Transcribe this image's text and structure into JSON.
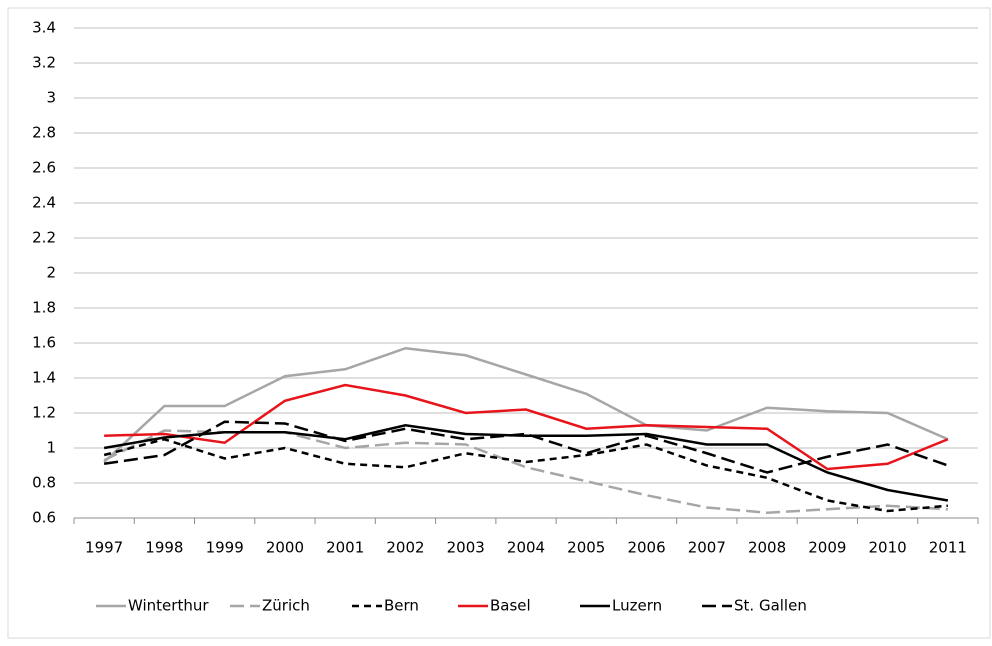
{
  "chart_data": {
    "type": "line",
    "x": [
      "1997",
      "1998",
      "1999",
      "2000",
      "2001",
      "2002",
      "2003",
      "2004",
      "2005",
      "2006",
      "2007",
      "2008",
      "2009",
      "2010",
      "2011"
    ],
    "ylim": [
      0.6,
      3.4
    ],
    "yticks": [
      0.6,
      0.8,
      1,
      1.2,
      1.4,
      1.6,
      1.8,
      2,
      2.2,
      2.4,
      2.6,
      2.8,
      3,
      3.2,
      3.4
    ],
    "grid": true,
    "legend": "bottom",
    "series": [
      {
        "name": "Winterthur",
        "color": "#a6a6a6",
        "line_style": "solid",
        "values": [
          0.92,
          1.24,
          1.24,
          1.41,
          1.45,
          1.57,
          1.53,
          1.42,
          1.31,
          1.13,
          1.1,
          1.23,
          1.21,
          1.2,
          1.05
        ]
      },
      {
        "name": "Zürich",
        "color": "#a6a6a6",
        "line_style": "long-dash",
        "values": [
          0.93,
          1.1,
          1.09,
          1.09,
          1.0,
          1.03,
          1.02,
          0.89,
          0.81,
          0.73,
          0.66,
          0.63,
          0.65,
          0.67,
          0.65
        ]
      },
      {
        "name": "Bern",
        "color": "#000000",
        "line_style": "dash",
        "values": [
          0.96,
          1.05,
          0.94,
          1.0,
          0.91,
          0.89,
          0.97,
          0.92,
          0.96,
          1.02,
          0.9,
          0.83,
          0.7,
          0.64,
          0.67
        ]
      },
      {
        "name": "Basel",
        "color": "#e8141b",
        "line_style": "solid",
        "values": [
          1.07,
          1.08,
          1.03,
          1.27,
          1.36,
          1.3,
          1.2,
          1.22,
          1.11,
          1.13,
          1.12,
          1.11,
          0.88,
          0.91,
          1.05
        ]
      },
      {
        "name": "Luzern",
        "color": "#000000",
        "line_style": "solid",
        "values": [
          1.0,
          1.06,
          1.09,
          1.09,
          1.05,
          1.13,
          1.08,
          1.07,
          1.07,
          1.08,
          1.02,
          1.02,
          0.86,
          0.76,
          0.7
        ]
      },
      {
        "name": "St. Gallen",
        "color": "#000000",
        "line_style": "long-dash",
        "values": [
          0.91,
          0.96,
          1.15,
          1.14,
          1.04,
          1.11,
          1.05,
          1.08,
          0.97,
          1.07,
          0.97,
          0.86,
          0.95,
          1.02,
          0.9
        ]
      }
    ]
  }
}
